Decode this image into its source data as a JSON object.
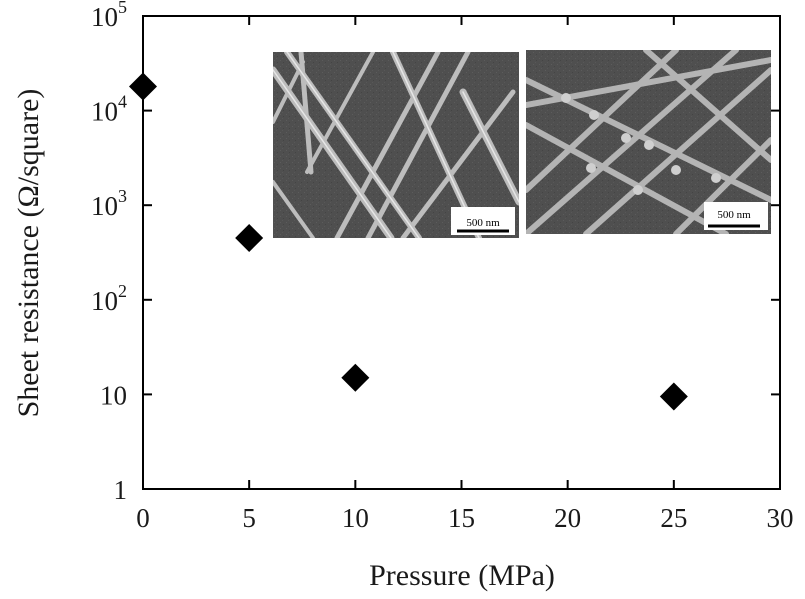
{
  "chart_data": {
    "type": "scatter",
    "xlabel": "Pressure (MPa)",
    "ylabel": "Sheet resistance (Ω/square)",
    "xlim": [
      0,
      30
    ],
    "ylim": [
      1,
      100000
    ],
    "yscale": "log",
    "grid": false,
    "legend": "none",
    "marker": "diamond",
    "marker_color": "#000000",
    "x_ticks": [
      0,
      5,
      10,
      15,
      20,
      25,
      30
    ],
    "x_tick_labels": [
      "0",
      "5",
      "10",
      "15",
      "20",
      "25",
      "30"
    ],
    "y_ticks": [
      1,
      10,
      100,
      1000,
      10000,
      100000
    ],
    "y_tick_labels": [
      {
        "base": "1",
        "exp": ""
      },
      {
        "base": "10",
        "exp": ""
      },
      {
        "base": "10",
        "exp": "2"
      },
      {
        "base": "10",
        "exp": "3"
      },
      {
        "base": "10",
        "exp": "4"
      },
      {
        "base": "10",
        "exp": "5"
      }
    ],
    "series": [
      {
        "x": [
          0,
          5,
          10,
          25
        ],
        "y": [
          18000,
          450,
          15,
          9.5
        ]
      }
    ]
  },
  "insets": [
    {
      "type": "SEM micrograph",
      "scale_bar": "500 nm"
    },
    {
      "type": "SEM micrograph",
      "scale_bar": "500 nm"
    }
  ]
}
